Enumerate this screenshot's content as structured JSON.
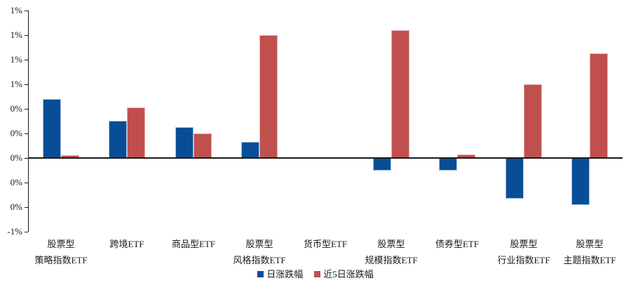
{
  "chart_data": {
    "type": "bar",
    "title": "",
    "categories": [
      [
        "股票型",
        "策略指数ETF"
      ],
      [
        "跨境ETF"
      ],
      [
        "商品型ETF"
      ],
      [
        "股票型",
        "风格指数ETF"
      ],
      [
        "货币型ETF"
      ],
      [
        "股票型",
        "规模指数ETF"
      ],
      [
        "债券型ETF"
      ],
      [
        "股票型",
        "行业指数ETF"
      ],
      [
        "股票型",
        "主题指数ETF"
      ]
    ],
    "series": [
      {
        "name": "日涨跌幅",
        "color": "#084e96",
        "values": [
          0.48,
          0.3,
          0.25,
          0.13,
          0.0,
          -0.1,
          -0.1,
          -0.33,
          -0.38
        ]
      },
      {
        "name": "近5日涨跌幅",
        "color": "#c0504d",
        "values": [
          0.02,
          0.41,
          0.2,
          1.0,
          0.0,
          1.04,
          0.03,
          0.6,
          0.85
        ]
      }
    ],
    "unit": "%",
    "ylim": [
      -0.6,
      1.2
    ],
    "ytick_step": 0.2,
    "ytick_labels": [
      "1%",
      "1%",
      "1%",
      "1%",
      "0%",
      "0%",
      "0%",
      "0%",
      "0%",
      "-1%"
    ],
    "grid": false,
    "legend_position": "bottom"
  }
}
